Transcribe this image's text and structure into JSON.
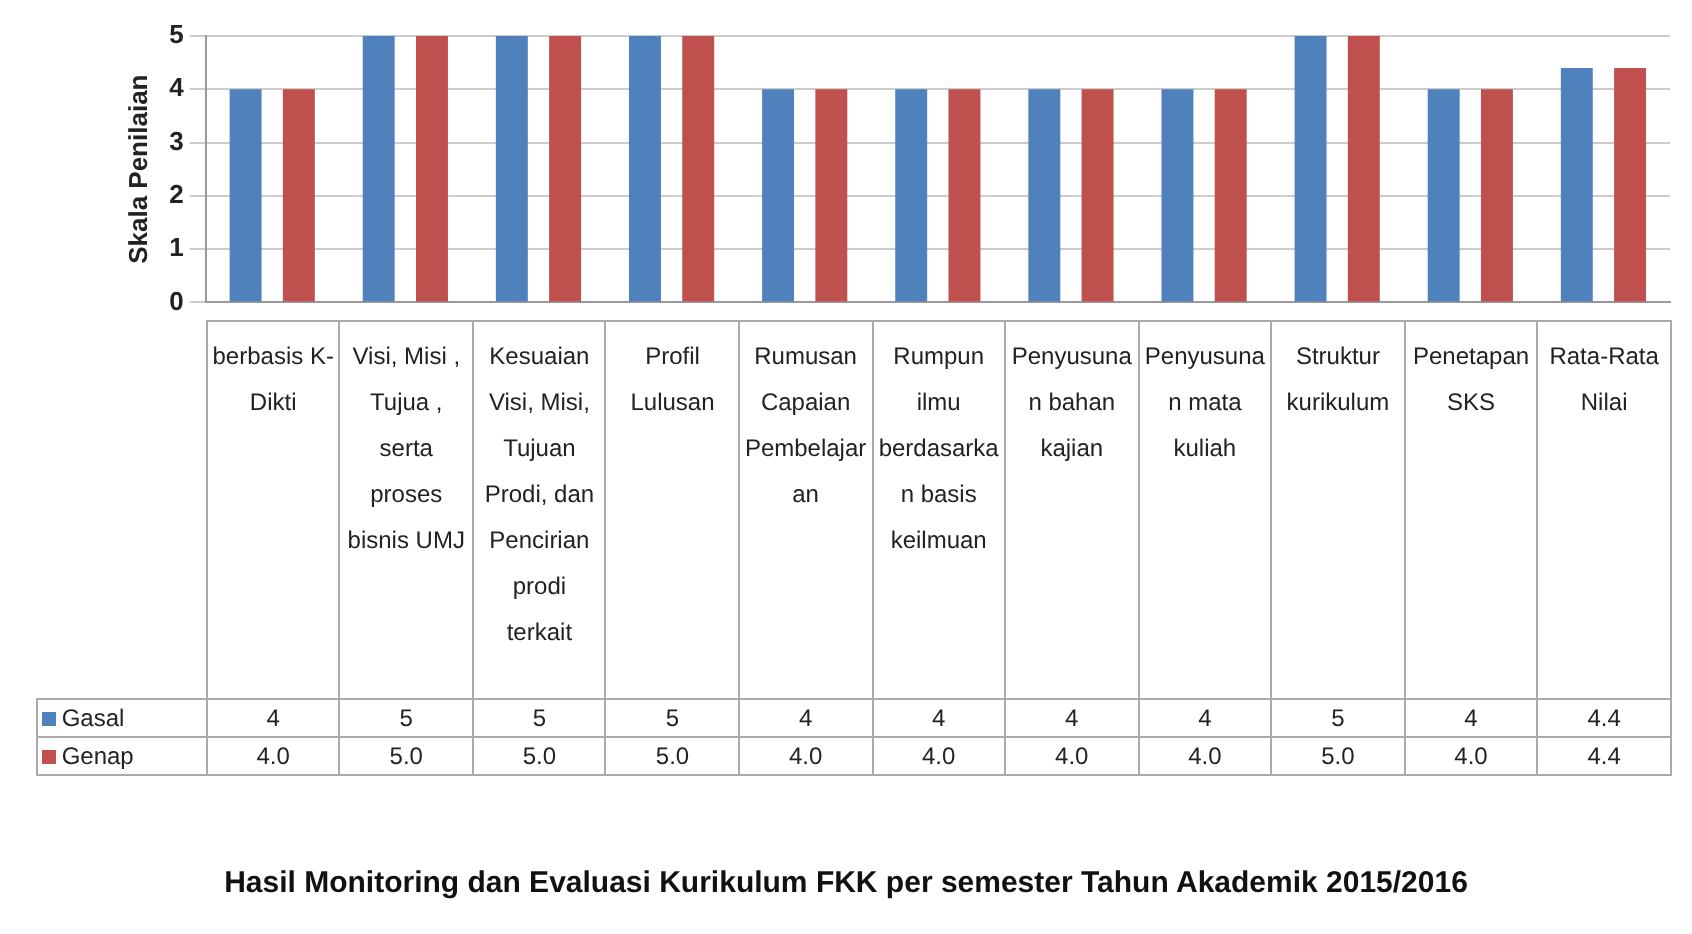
{
  "chart_data": {
    "type": "bar",
    "title": "Hasil Monitoring dan Evaluasi Kurikulum FKK per semester Tahun Akademik 2015/2016",
    "ylabel": "Skala Penilaian",
    "categories": [
      "berbasis K-Dikti",
      "Visi, Misi , Tujua , serta proses bisnis UMJ",
      "Kesuaian Visi, Misi, Tujuan Prodi, dan Pencirian prodi terkait",
      "Profil Lulusan",
      "Rumusan Capaian Pembelajaran",
      "Rumpun ilmu berdasarkan basis keilmuan",
      "Penyusunan bahan kajian",
      "Penyusunan mata kuliah",
      "Struktur kurikulum",
      "Penetapan SKS",
      "Rata-Rata Nilai"
    ],
    "series": [
      {
        "name": "Gasal",
        "color": "#4f81bd",
        "values": [
          4,
          5,
          5,
          5,
          4,
          4,
          4,
          4,
          5,
          4,
          4.4
        ],
        "value_labels": [
          "4",
          "5",
          "5",
          "5",
          "4",
          "4",
          "4",
          "4",
          "5",
          "4",
          "4.4"
        ]
      },
      {
        "name": "Genap",
        "color": "#c0504d",
        "values": [
          4,
          5,
          5,
          5,
          4,
          4,
          4,
          4,
          5,
          4,
          4.4
        ],
        "value_labels": [
          "4.0",
          "5.0",
          "5.0",
          "5.0",
          "4.0",
          "4.0",
          "4.0",
          "4.0",
          "5.0",
          "4.0",
          "4.4"
        ]
      }
    ],
    "ylim": [
      0,
      5
    ],
    "yticks": [
      0,
      1,
      2,
      3,
      4,
      5
    ],
    "grid": "y",
    "legend": "bottom left"
  }
}
